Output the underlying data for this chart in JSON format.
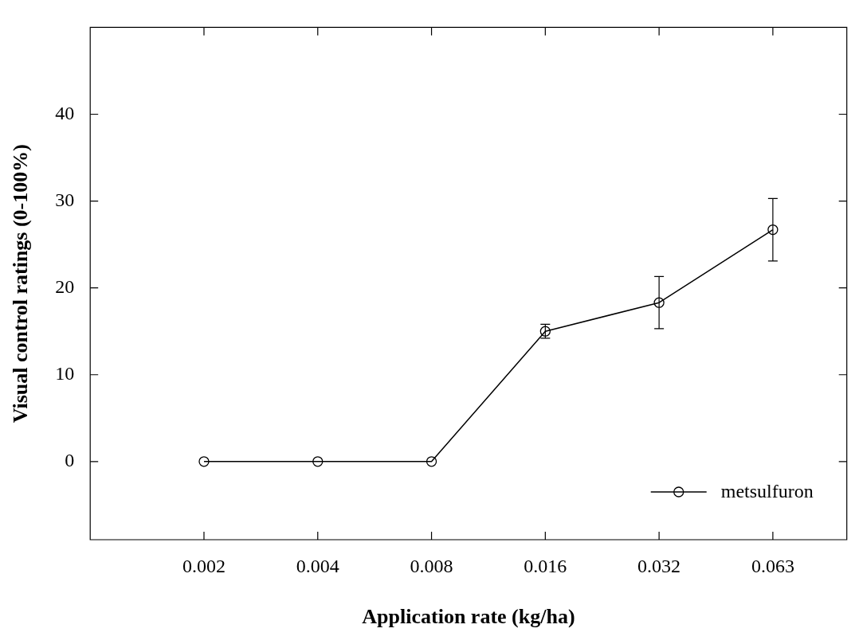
{
  "chart_data": {
    "type": "line",
    "xlabel": "Application rate (kg/ha)",
    "ylabel": "Visual control ratings (0-100%)",
    "categories": [
      "0.002",
      "0.004",
      "0.008",
      "0.016",
      "0.032",
      "0.063"
    ],
    "series": [
      {
        "name": "metsulfuron",
        "color": "#000000",
        "values": [
          0,
          0,
          0,
          15,
          18.3,
          26.7
        ],
        "errors": [
          null,
          null,
          null,
          0.8,
          3,
          3.6
        ]
      }
    ],
    "ylim": [
      -9,
      50
    ],
    "yticks": [
      0,
      10,
      20,
      30,
      40
    ],
    "grid": false,
    "legend": "bottom right",
    "marker": "circle",
    "line_style": "solid"
  }
}
